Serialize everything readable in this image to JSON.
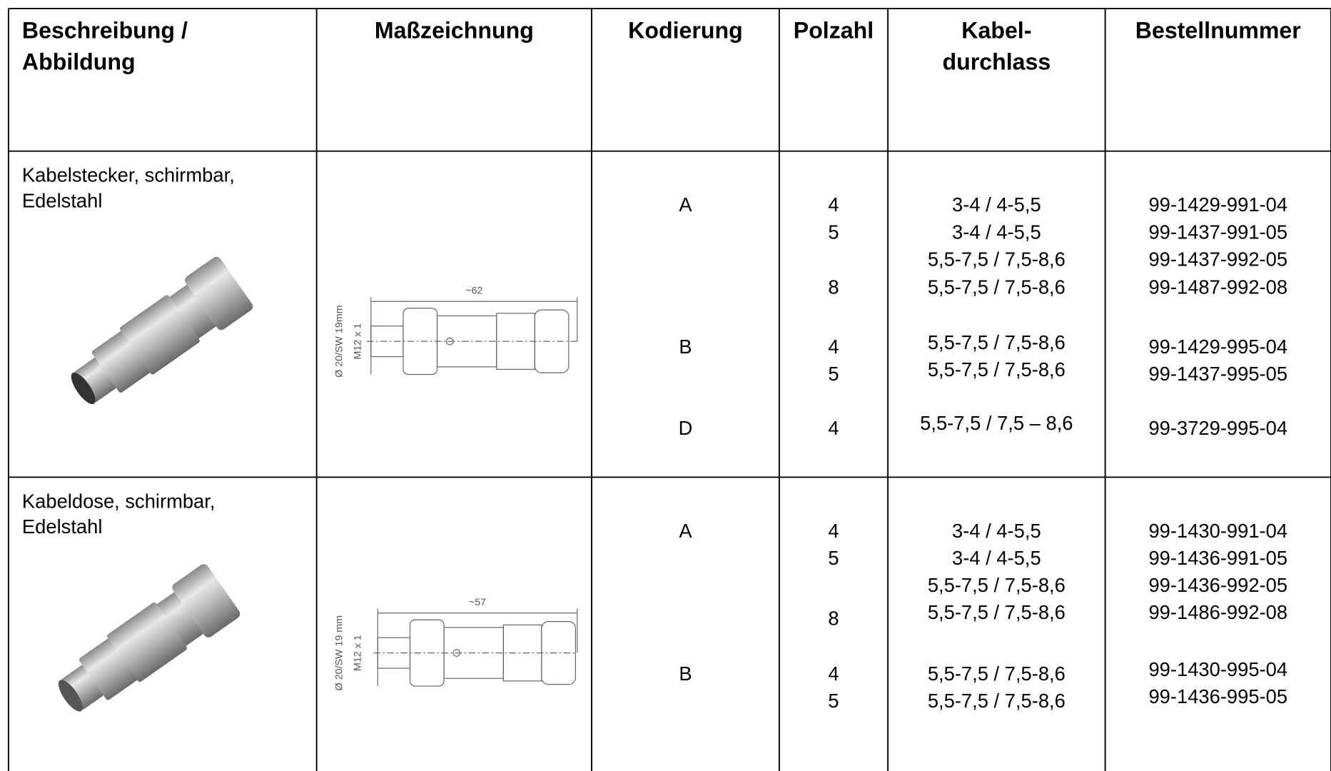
{
  "header": {
    "columns": [
      [
        "Beschreibung /",
        "Abbildung"
      ],
      [
        "Maßzeichnung"
      ],
      [
        "Kodierung"
      ],
      [
        "Polzahl"
      ],
      [
        "Kabel-",
        "durchlass"
      ],
      [
        "Bestellnummer"
      ]
    ]
  },
  "rows": [
    {
      "description": [
        "Kabelstecker, schirmbar,",
        "Edelstahl"
      ],
      "drawing": {
        "length": "~62",
        "outer": "Ø 20/SW 19mm",
        "thread": "M12 x 1"
      },
      "kodierung": [
        "A",
        "B",
        "D"
      ],
      "polzahl": [
        4,
        5,
        8,
        4,
        5,
        4
      ],
      "kabeldurchlass": [
        "3-4 / 4-5,5",
        "3-4 / 4-5,5",
        "5,5-7,5 / 7,5-8,6",
        "5,5-7,5 / 7,5-8,6",
        "5,5-7,5 / 7,5-8,6",
        "5,5-7,5 / 7,5-8,6",
        "5,5-7,5 / 7,5 – 8,6"
      ],
      "bestellnummer": [
        "99-1429-991-04",
        "99-1437-991-05",
        "99-1437-992-05",
        "99-1487-992-08",
        "99-1429-995-04",
        "99-1437-995-05",
        "99-3729-995-04"
      ]
    },
    {
      "description": [
        "Kabeldose, schirmbar,",
        "Edelstahl"
      ],
      "drawing": {
        "length": "~57",
        "outer": "Ø 20/SW 19 mm",
        "thread": "M12 x 1"
      },
      "kodierung": [
        "A",
        "B"
      ],
      "polzahl": [
        4,
        5,
        8,
        4,
        5
      ],
      "kabeldurchlass": [
        "3-4 / 4-5,5",
        "3-4 / 4-5,5",
        "5,5-7,5 / 7,5-8,6",
        "5,5-7,5 / 7,5-8,6",
        "5,5-7,5 / 7,5-8,6",
        "5,5-7,5 / 7,5-8,6"
      ],
      "bestellnummer": [
        "99-1430-991-04",
        "99-1436-991-05",
        "99-1436-992-05",
        "99-1486-992-08",
        "99-1430-995-04",
        "99-1436-995-05"
      ]
    }
  ]
}
